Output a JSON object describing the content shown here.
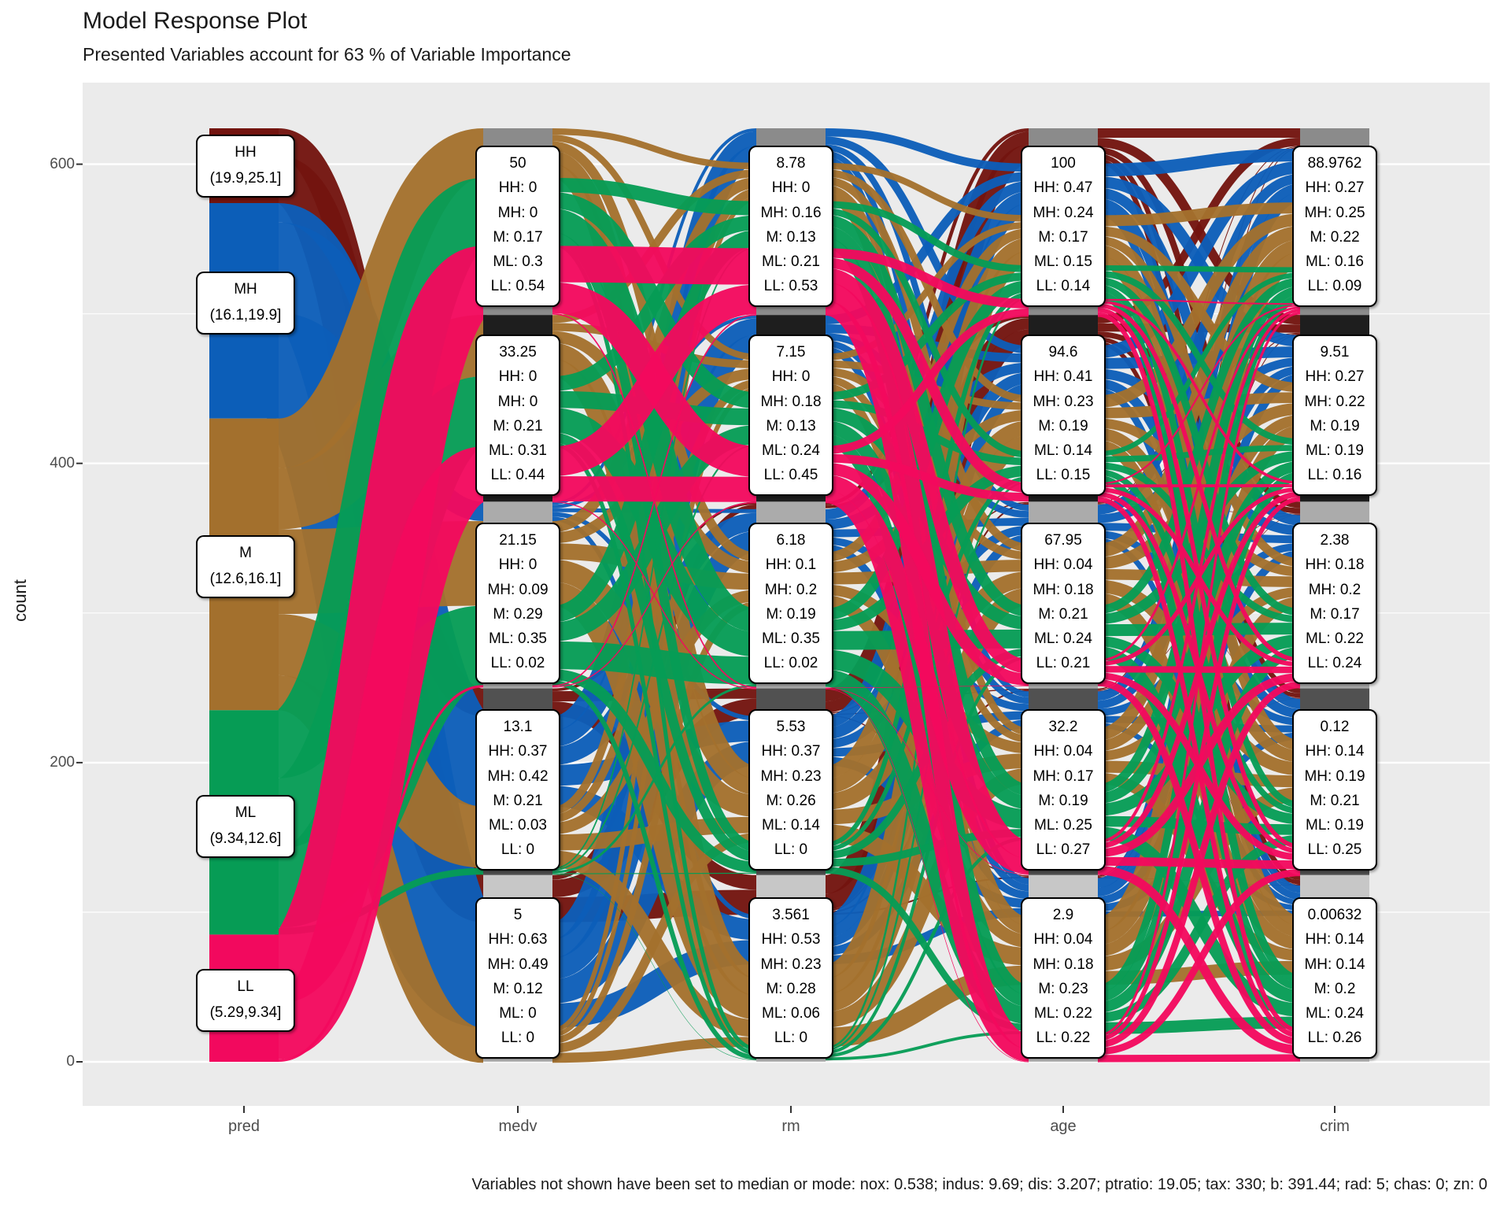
{
  "title": "Model Response Plot",
  "subtitle": "Presented Variables account for 63 % of Variable Importance",
  "caption": "Variables not shown have been set to median or mode: nox: 0.538; indus: 9.69; dis: 3.207; ptratio: 19.05; tax: 330; b: 391.44; rad: 5; chas: 0; zn: 0",
  "y_axis": {
    "label": "count",
    "major_ticks": [
      0,
      200,
      400,
      600
    ],
    "minor_ticks": [
      100,
      300,
      500
    ]
  },
  "x_axis": {
    "labels": [
      "pred",
      "medv",
      "rm",
      "age",
      "crim"
    ]
  },
  "panel": {
    "background": "#EBEBEB",
    "gridline_color": "#FFFFFF"
  },
  "chart_data": {
    "type": "alluvial",
    "classes": [
      "HH",
      "MH",
      "M",
      "ML",
      "LL"
    ],
    "class_colors": {
      "HH": "#73140F",
      "MH": "#0C5EB8",
      "M": "#A3702D",
      "ML": "#069C55",
      "LL": "#F2095E"
    },
    "node_grays": [
      "#8B8B8B",
      "#1E1E1E",
      "#ABABAB",
      "#515151",
      "#C7C7C7"
    ],
    "pred": {
      "axis": "pred",
      "bands": [
        {
          "class": "HH",
          "range": "(19.9,25.1]",
          "count": 50
        },
        {
          "class": "MH",
          "range": "(16.1,19.9]",
          "count": 144
        },
        {
          "class": "M",
          "range": "(12.6,16.1]",
          "count": 195
        },
        {
          "class": "ML",
          "range": "(9.34,12.6]",
          "count": 150
        },
        {
          "class": "LL",
          "range": "(5.29,9.34]",
          "count": 85
        }
      ]
    },
    "columns": [
      {
        "axis": "medv",
        "bins": [
          {
            "value": "50",
            "props": {
              "HH": "0",
              "MH": "0",
              "M": "0.17",
              "ML": "0.3",
              "LL": "0.54"
            }
          },
          {
            "value": "33.25",
            "props": {
              "HH": "0",
              "MH": "0",
              "M": "0.21",
              "ML": "0.31",
              "LL": "0.44"
            }
          },
          {
            "value": "21.15",
            "props": {
              "HH": "0",
              "MH": "0.09",
              "M": "0.29",
              "ML": "0.35",
              "LL": "0.02"
            }
          },
          {
            "value": "13.1",
            "props": {
              "HH": "0.37",
              "MH": "0.42",
              "M": "0.21",
              "ML": "0.03",
              "LL": "0"
            }
          },
          {
            "value": "5",
            "props": {
              "HH": "0.63",
              "MH": "0.49",
              "M": "0.12",
              "ML": "0",
              "LL": "0"
            }
          }
        ]
      },
      {
        "axis": "rm",
        "bins": [
          {
            "value": "8.78",
            "props": {
              "HH": "0",
              "MH": "0.16",
              "M": "0.13",
              "ML": "0.21",
              "LL": "0.53"
            }
          },
          {
            "value": "7.15",
            "props": {
              "HH": "0",
              "MH": "0.18",
              "M": "0.13",
              "ML": "0.24",
              "LL": "0.45"
            }
          },
          {
            "value": "6.18",
            "props": {
              "HH": "0.1",
              "MH": "0.2",
              "M": "0.19",
              "ML": "0.35",
              "LL": "0.02"
            }
          },
          {
            "value": "5.53",
            "props": {
              "HH": "0.37",
              "MH": "0.23",
              "M": "0.26",
              "ML": "0.14",
              "LL": "0"
            }
          },
          {
            "value": "3.561",
            "props": {
              "HH": "0.53",
              "MH": "0.23",
              "M": "0.28",
              "ML": "0.06",
              "LL": "0"
            }
          }
        ]
      },
      {
        "axis": "age",
        "bins": [
          {
            "value": "100",
            "props": {
              "HH": "0.47",
              "MH": "0.24",
              "M": "0.17",
              "ML": "0.15",
              "LL": "0.14"
            }
          },
          {
            "value": "94.6",
            "props": {
              "HH": "0.41",
              "MH": "0.23",
              "M": "0.19",
              "ML": "0.14",
              "LL": "0.15"
            }
          },
          {
            "value": "67.95",
            "props": {
              "HH": "0.04",
              "MH": "0.18",
              "M": "0.21",
              "ML": "0.24",
              "LL": "0.21"
            }
          },
          {
            "value": "32.2",
            "props": {
              "HH": "0.04",
              "MH": "0.17",
              "M": "0.19",
              "ML": "0.25",
              "LL": "0.27"
            }
          },
          {
            "value": "2.9",
            "props": {
              "HH": "0.04",
              "MH": "0.18",
              "M": "0.23",
              "ML": "0.22",
              "LL": "0.22"
            }
          }
        ]
      },
      {
        "axis": "crim",
        "bins": [
          {
            "value": "88.9762",
            "props": {
              "HH": "0.27",
              "MH": "0.25",
              "M": "0.22",
              "ML": "0.16",
              "LL": "0.09"
            }
          },
          {
            "value": "9.51",
            "props": {
              "HH": "0.27",
              "MH": "0.22",
              "M": "0.19",
              "ML": "0.19",
              "LL": "0.16"
            }
          },
          {
            "value": "2.38",
            "props": {
              "HH": "0.18",
              "MH": "0.2",
              "M": "0.17",
              "ML": "0.22",
              "LL": "0.24"
            }
          },
          {
            "value": "0.12",
            "props": {
              "HH": "0.14",
              "MH": "0.19",
              "M": "0.21",
              "ML": "0.19",
              "LL": "0.25"
            }
          },
          {
            "value": "0.00632",
            "props": {
              "HH": "0.14",
              "MH": "0.14",
              "M": "0.2",
              "ML": "0.24",
              "LL": "0.26"
            }
          }
        ]
      }
    ]
  }
}
